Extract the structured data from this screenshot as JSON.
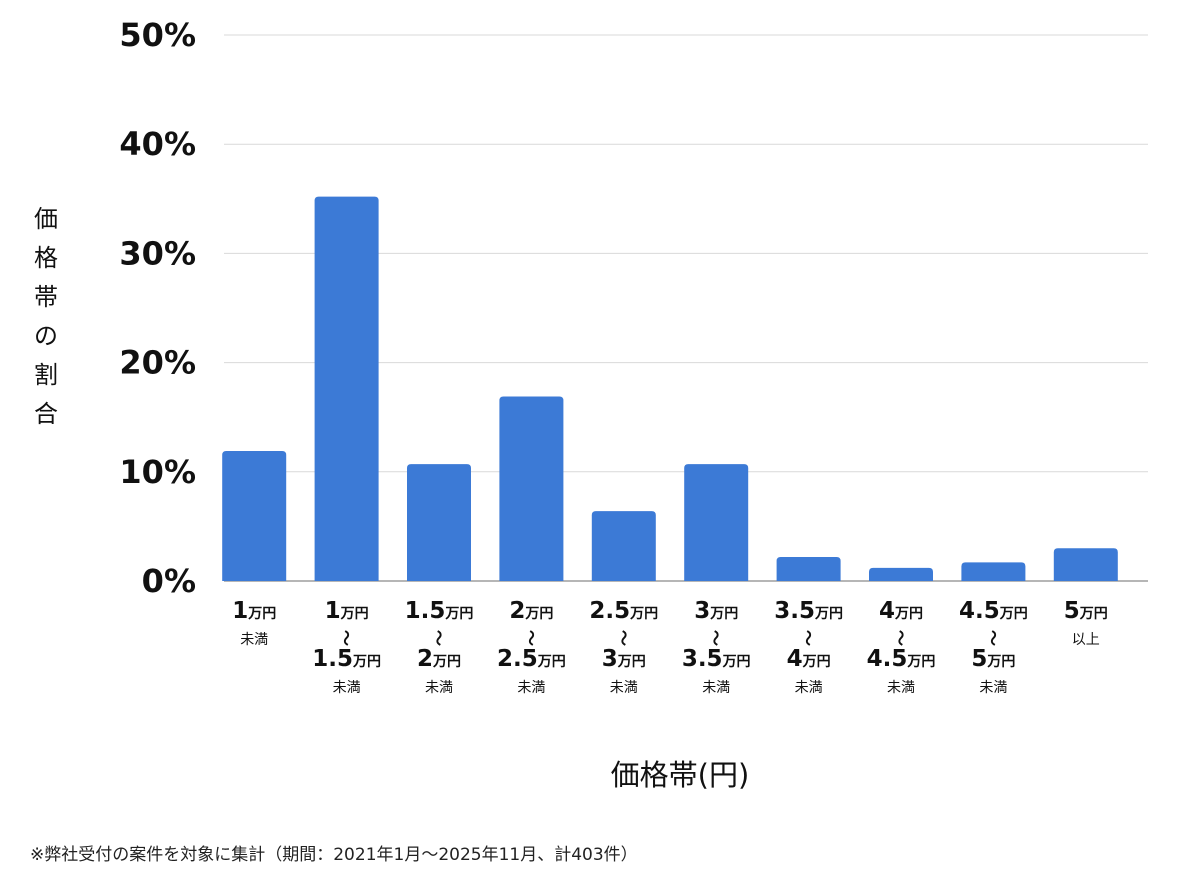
{
  "chart_data": {
    "type": "bar",
    "title": "",
    "xlabel": "価格帯(円)",
    "ylabel": "価格帯の割合",
    "ylim": [
      0,
      50
    ],
    "yticks": [
      "0%",
      "10%",
      "20%",
      "30%",
      "40%",
      "50%"
    ],
    "grid": true,
    "bar_color": "#3c7ad6",
    "categories": [
      "1万円 未満",
      "1万円 〜 1.5万円 未満",
      "1.5万円 〜 2万円 未満",
      "2万円 〜 2.5万円 未満",
      "2.5万円 〜 3万円 未満",
      "3万円 〜 3.5万円 未満",
      "3.5万円 〜 4万円 未満",
      "4万円 〜 4.5万円 未満",
      "4.5万円 〜 5万円 未満",
      "5万円 以上"
    ],
    "category_labels": [
      [
        [
          "1",
          "万円"
        ],
        [
          "",
          "未満"
        ]
      ],
      [
        [
          "1",
          "万円"
        ],
        [
          "",
          "〜"
        ],
        [
          "1.5",
          "万円"
        ],
        [
          "",
          "未満"
        ]
      ],
      [
        [
          "1.5",
          "万円"
        ],
        [
          "",
          "〜"
        ],
        [
          "2",
          "万円"
        ],
        [
          "",
          "未満"
        ]
      ],
      [
        [
          "2",
          "万円"
        ],
        [
          "",
          "〜"
        ],
        [
          "2.5",
          "万円"
        ],
        [
          "",
          "未満"
        ]
      ],
      [
        [
          "2.5",
          "万円"
        ],
        [
          "",
          "〜"
        ],
        [
          "3",
          "万円"
        ],
        [
          "",
          "未満"
        ]
      ],
      [
        [
          "3",
          "万円"
        ],
        [
          "",
          "〜"
        ],
        [
          "3.5",
          "万円"
        ],
        [
          "",
          "未満"
        ]
      ],
      [
        [
          "3.5",
          "万円"
        ],
        [
          "",
          "〜"
        ],
        [
          "4",
          "万円"
        ],
        [
          "",
          "未満"
        ]
      ],
      [
        [
          "4",
          "万円"
        ],
        [
          "",
          "〜"
        ],
        [
          "4.5",
          "万円"
        ],
        [
          "",
          "未満"
        ]
      ],
      [
        [
          "4.5",
          "万円"
        ],
        [
          "",
          "〜"
        ],
        [
          "5",
          "万円"
        ],
        [
          "",
          "未満"
        ]
      ],
      [
        [
          "5",
          "万円"
        ],
        [
          "",
          "以上"
        ]
      ]
    ],
    "values": [
      11.9,
      35.2,
      10.7,
      16.9,
      6.4,
      10.7,
      2.2,
      1.2,
      1.7,
      3.0
    ]
  },
  "footnote": "※弊社受付の案件を対象に集計（期間：2021年1月〜2025年11月、計403件）"
}
